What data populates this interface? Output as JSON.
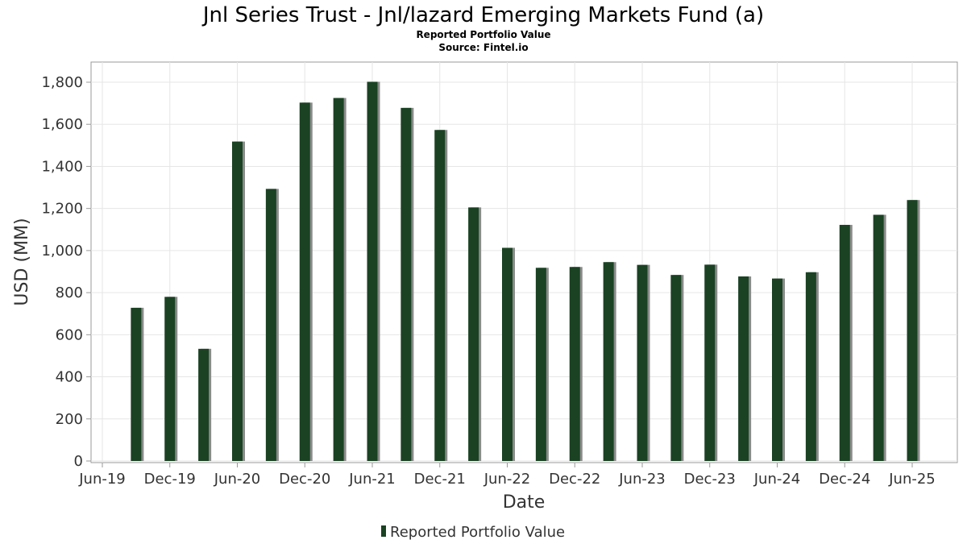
{
  "chart_data": {
    "type": "bar",
    "title": "Jnl Series Trust - Jnl/lazard Emerging Markets Fund (a)",
    "subtitle": "Reported Portfolio Value",
    "source": "Source: Fintel.io",
    "xlabel": "Date",
    "ylabel": "USD (MM)",
    "ylim": [
      0,
      1900
    ],
    "yticks": [
      0,
      200,
      400,
      600,
      800,
      1000,
      1200,
      1400,
      1600,
      1800
    ],
    "ytick_labels": [
      "0",
      "200",
      "400",
      "600",
      "800",
      "1,000",
      "1,200",
      "1,400",
      "1,600",
      "1,800"
    ],
    "xticks": [
      "Jun-19",
      "Dec-19",
      "Jun-20",
      "Dec-20",
      "Jun-21",
      "Dec-21",
      "Jun-22",
      "Dec-22",
      "Jun-23",
      "Dec-23",
      "Jun-24",
      "Dec-24",
      "Jun-25"
    ],
    "grid": true,
    "legend_position": "bottom-center",
    "series": [
      {
        "name": "Reported Portfolio Value",
        "color": "#1a4223",
        "dates": [
          "Sep-19",
          "Dec-19",
          "Mar-20",
          "Jun-20",
          "Sep-20",
          "Dec-20",
          "Mar-21",
          "Jun-21",
          "Sep-21",
          "Dec-21",
          "Mar-22",
          "Jun-22",
          "Sep-22",
          "Dec-22",
          "Mar-23",
          "Jun-23",
          "Sep-23",
          "Dec-23",
          "Mar-24",
          "Jun-24",
          "Sep-24",
          "Dec-24",
          "Mar-25",
          "Jun-25"
        ],
        "values": [
          728,
          780,
          533,
          1518,
          1293,
          1703,
          1725,
          1802,
          1678,
          1573,
          1205,
          1013,
          918,
          922,
          945,
          932,
          884,
          933,
          877,
          867,
          897,
          1122,
          1170,
          1240
        ]
      }
    ]
  }
}
